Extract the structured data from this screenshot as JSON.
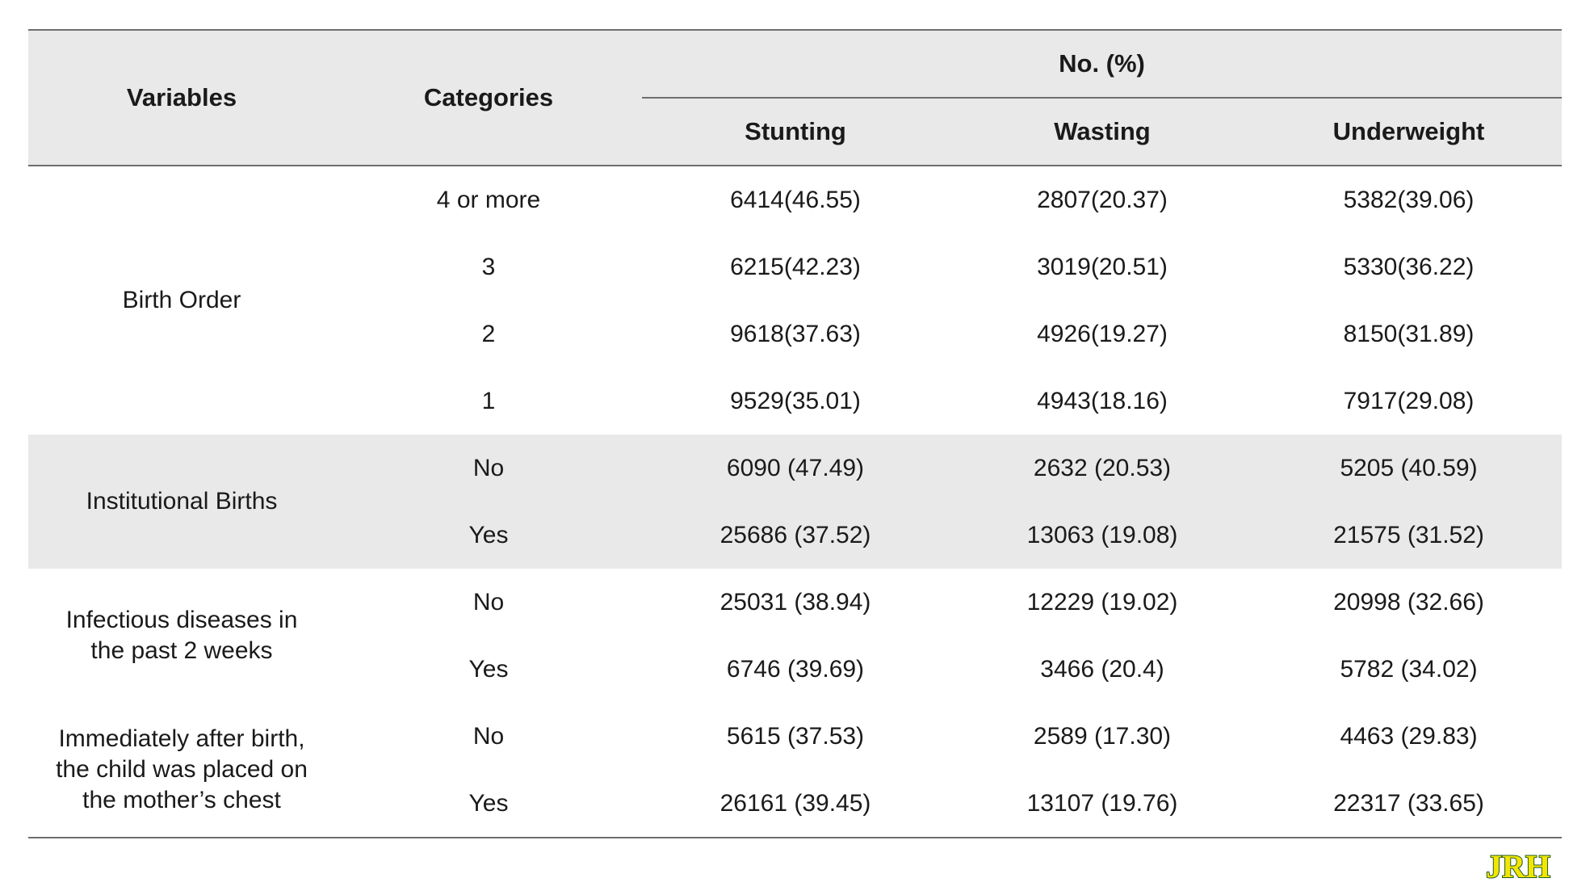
{
  "table": {
    "headers": {
      "variables": "Variables",
      "categories": "Categories",
      "group": "No. (%)",
      "stunting": "Stunting",
      "wasting": "Wasting",
      "underweight": "Underweight"
    },
    "groups": [
      {
        "variable": "Birth Order",
        "rows": [
          {
            "category": "4 or more",
            "stunting": "6414(46.55)",
            "wasting": "2807(20.37)",
            "underweight": "5382(39.06)"
          },
          {
            "category": "3",
            "stunting": "6215(42.23)",
            "wasting": "3019(20.51)",
            "underweight": "5330(36.22)"
          },
          {
            "category": "2",
            "stunting": "9618(37.63)",
            "wasting": "4926(19.27)",
            "underweight": "8150(31.89)"
          },
          {
            "category": "1",
            "stunting": "9529(35.01)",
            "wasting": "4943(18.16)",
            "underweight": "7917(29.08)"
          }
        ]
      },
      {
        "variable": "Institutional Births",
        "rows": [
          {
            "category": "No",
            "stunting": "6090 (47.49)",
            "wasting": "2632 (20.53)",
            "underweight": "5205 (40.59)"
          },
          {
            "category": "Yes",
            "stunting": "25686 (37.52)",
            "wasting": "13063 (19.08)",
            "underweight": "21575 (31.52)"
          }
        ]
      },
      {
        "variable_lines": [
          "Infectious diseases in",
          "the past 2 weeks"
        ],
        "rows": [
          {
            "category": "No",
            "stunting": "25031 (38.94)",
            "wasting": "12229 (19.02)",
            "underweight": "20998 (32.66)"
          },
          {
            "category": "Yes",
            "stunting": "6746 (39.69)",
            "wasting": "3466 (20.4)",
            "underweight": "5782 (34.02)"
          }
        ]
      },
      {
        "variable_lines": [
          "Immediately after birth,",
          "the child was placed on",
          "the mother’s chest"
        ],
        "rows": [
          {
            "category": "No",
            "stunting": "5615 (37.53)",
            "wasting": "2589 (17.30)",
            "underweight": "4463 (29.83)"
          },
          {
            "category": "Yes",
            "stunting": "26161 (39.45)",
            "wasting": "13107 (19.76)",
            "underweight": "22317 (33.65)"
          }
        ]
      }
    ]
  },
  "logo": {
    "text": "JRH",
    "fill_color": "#f2e600",
    "outline_color": "#1f5a2a"
  }
}
